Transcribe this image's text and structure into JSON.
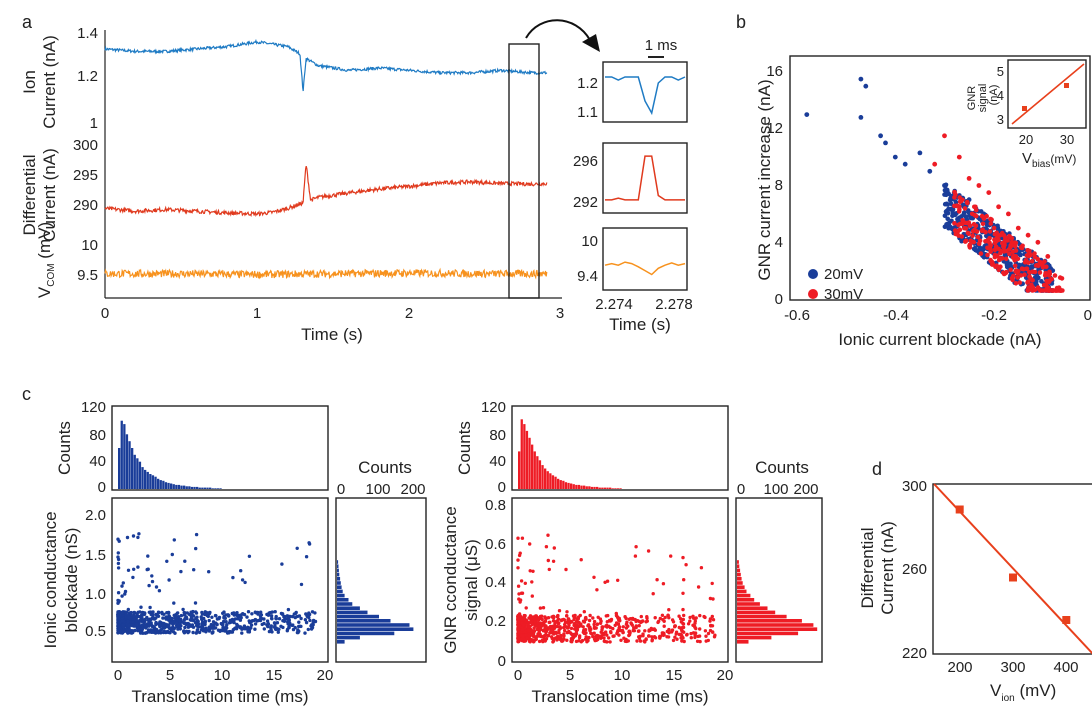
{
  "panels": {
    "a": "a",
    "b": "b",
    "c": "c",
    "d": "d"
  },
  "colors": {
    "blue": "#1f7bc4",
    "red": "#e03a1e",
    "orange": "#f7921e",
    "navy": "#1a3d99",
    "bright_red": "#ee1c25",
    "fit": "#e8401c"
  },
  "chart_data": [
    {
      "id": "a-ion",
      "type": "line",
      "ylabel_1": "Ion",
      "ylabel_2": "Current (nA)",
      "xlim": [
        0,
        3
      ],
      "ylim": [
        1.0,
        1.4
      ],
      "yticks": [
        "1.4",
        "1.2",
        "1"
      ],
      "series": [
        {
          "x": [
            0,
            0.2,
            0.4,
            0.6,
            0.8,
            1.0,
            1.1,
            1.2,
            1.28,
            1.3,
            1.32,
            1.4,
            1.6,
            1.8,
            2.0,
            2.2,
            2.4,
            2.6,
            2.8,
            2.9
          ],
          "values": [
            1.32,
            1.31,
            1.31,
            1.32,
            1.33,
            1.35,
            1.34,
            1.33,
            1.3,
            1.14,
            1.28,
            1.25,
            1.23,
            1.24,
            1.23,
            1.22,
            1.22,
            1.23,
            1.22,
            1.22
          ]
        }
      ]
    },
    {
      "id": "a-diff",
      "type": "line",
      "ylabel_1": "Differential",
      "ylabel_2": "Current (nA)",
      "xlim": [
        0,
        3
      ],
      "ylim": [
        285,
        300
      ],
      "yticks": [
        "300",
        "295",
        "290"
      ],
      "series": [
        {
          "x": [
            0,
            0.2,
            0.4,
            0.6,
            0.8,
            1.0,
            1.1,
            1.2,
            1.3,
            1.32,
            1.35,
            1.4,
            1.6,
            1.8,
            2.0,
            2.2,
            2.4,
            2.6,
            2.8,
            2.9
          ],
          "values": [
            288,
            287.5,
            287.8,
            287.5,
            287.2,
            287,
            287.3,
            288,
            289,
            296,
            289.5,
            290,
            290.8,
            291.5,
            292,
            292.6,
            292.8,
            292.5,
            292.4,
            292.5
          ]
        }
      ]
    },
    {
      "id": "a-vcom",
      "type": "line",
      "ylabel_1": "V",
      "ylabel_sub": "COM",
      "ylabel_2": "(mV)",
      "xlim": [
        0,
        3
      ],
      "ylim": [
        9.3,
        10.1
      ],
      "yticks": [
        "10",
        "9.5"
      ],
      "xticks": [
        "0",
        "1",
        "2",
        "3"
      ],
      "xlabel": "Time (s)",
      "series": [
        {
          "x": [
            0,
            0.5,
            1.0,
            1.5,
            2.0,
            2.5,
            2.9
          ],
          "values": [
            9.65,
            9.65,
            9.64,
            9.65,
            9.66,
            9.65,
            9.65
          ]
        }
      ]
    },
    {
      "id": "a-inset",
      "type": "line",
      "scale_bar": "1 ms",
      "xlabel": "Time (s)",
      "xticks": [
        "2.274",
        "2.278"
      ],
      "panels": [
        {
          "yticks": [
            "1.2",
            "1.1"
          ],
          "values": [
            1.2,
            1.2,
            1.19,
            1.2,
            1.2,
            1.2,
            1.12,
            1.08,
            1.18,
            1.2,
            1.2,
            1.19,
            1.2
          ]
        },
        {
          "yticks": [
            "296",
            "292"
          ],
          "values": [
            292,
            292,
            292.2,
            292,
            292,
            292,
            297,
            297,
            292.5,
            292,
            292,
            292,
            292
          ]
        },
        {
          "yticks": [
            "10",
            "9.4"
          ],
          "values": [
            9.62,
            9.64,
            9.62,
            9.66,
            9.64,
            9.6,
            9.55,
            9.5,
            9.58,
            9.62,
            9.65,
            9.62,
            9.64
          ]
        }
      ]
    },
    {
      "id": "b",
      "type": "scatter",
      "xlabel": "Ionic current blockade (nA)",
      "ylabel": "GNR current increase (nA)",
      "xlim": [
        -0.6,
        0
      ],
      "ylim": [
        0,
        17
      ],
      "xticks": [
        "-0.6",
        "-0.4",
        "-0.2",
        "0"
      ],
      "yticks": [
        "0",
        "4",
        "8",
        "12",
        "16"
      ],
      "legend": [
        "20mV",
        "30mV"
      ],
      "legend_position": "left",
      "series": [
        {
          "name": "20mV",
          "points": [
            [
              -0.58,
              13
            ],
            [
              -0.47,
              15.5
            ],
            [
              -0.46,
              15
            ],
            [
              -0.47,
              12.8
            ],
            [
              -0.43,
              11.5
            ],
            [
              -0.42,
              11
            ],
            [
              -0.4,
              10
            ],
            [
              -0.38,
              9.5
            ],
            [
              -0.35,
              10.3
            ],
            [
              -0.33,
              9
            ],
            [
              -0.3,
              8
            ],
            [
              -0.28,
              7.5
            ],
            [
              -0.25,
              7
            ],
            [
              -0.22,
              6
            ],
            [
              -0.2,
              5
            ],
            [
              -0.18,
              4.5
            ],
            [
              -0.16,
              4
            ],
            [
              -0.14,
              3.5
            ],
            [
              -0.12,
              3
            ],
            [
              -0.1,
              2.5
            ],
            [
              -0.08,
              2
            ]
          ]
        },
        {
          "name": "30mV",
          "points": [
            [
              -0.32,
              9.5
            ],
            [
              -0.3,
              11.5
            ],
            [
              -0.27,
              10
            ],
            [
              -0.25,
              8.5
            ],
            [
              -0.23,
              8
            ],
            [
              -0.21,
              7.5
            ],
            [
              -0.19,
              6.5
            ],
            [
              -0.17,
              6
            ],
            [
              -0.15,
              5
            ],
            [
              -0.13,
              4.5
            ],
            [
              -0.11,
              4
            ],
            [
              -0.09,
              3
            ]
          ]
        }
      ],
      "inset": {
        "ylabel_1": "GNR",
        "ylabel_2": "signal",
        "ylabel_unit": "(nA)",
        "xlabel_main": "V",
        "xlabel_sub": "bias",
        "xlabel_unit": "(mV)",
        "xticks": [
          "20",
          "30"
        ],
        "yticks": [
          "5",
          "4",
          "3"
        ],
        "points": [
          [
            20,
            3.3
          ],
          [
            30,
            4.4
          ]
        ]
      }
    },
    {
      "id": "c-left",
      "type": "scatter",
      "xlabel": "Translocation time (ms)",
      "ylabel_1": "Ionic conductance",
      "ylabel_2": "blockade (nS)",
      "xlim": [
        0,
        20
      ],
      "ylim": [
        0,
        2.1
      ],
      "xticks": [
        "0",
        "5",
        "10",
        "15",
        "20"
      ],
      "yticks": [
        "0.5",
        "1.0",
        "1.5",
        "2.0"
      ],
      "hist_top": {
        "ylabel": "Counts",
        "yticks": [
          "120",
          "80",
          "40",
          "0"
        ],
        "values": [
          60,
          100,
          95,
          80,
          70,
          60,
          50,
          45,
          40,
          32,
          28,
          25,
          22,
          20,
          18,
          15,
          13,
          12,
          10,
          9,
          8,
          7,
          6,
          6,
          5,
          5,
          4,
          4,
          3,
          3,
          3,
          2,
          2,
          2,
          2,
          2,
          1,
          1,
          1,
          1
        ]
      },
      "hist_right": {
        "xlabel": "Counts",
        "xticks": [
          "0",
          "100",
          "200"
        ],
        "values": [
          20,
          60,
          150,
          200,
          190,
          140,
          110,
          80,
          60,
          40,
          30,
          20,
          15,
          12,
          10,
          8,
          6,
          5,
          4,
          3
        ]
      }
    },
    {
      "id": "c-right",
      "type": "scatter",
      "xlabel": "Translocation time (ms)",
      "ylabel_1": "GNR cconductance",
      "ylabel_2": "signal",
      "ylabel_unit": "(μS)",
      "xlim": [
        0,
        20
      ],
      "ylim": [
        0,
        0.85
      ],
      "xticks": [
        "0",
        "5",
        "10",
        "15",
        "20"
      ],
      "yticks": [
        "0",
        "0.2",
        "0.4",
        "0.6",
        "0.8"
      ],
      "hist_top": {
        "ylabel": "Counts",
        "yticks": [
          "120",
          "80",
          "40",
          "0"
        ],
        "values": [
          55,
          102,
          95,
          85,
          75,
          65,
          55,
          48,
          42,
          35,
          30,
          26,
          23,
          20,
          18,
          15,
          13,
          12,
          10,
          9,
          8,
          7,
          6,
          6,
          5,
          5,
          4,
          4,
          3,
          3,
          3,
          2,
          2,
          2,
          2,
          2,
          1,
          1,
          1,
          1
        ]
      },
      "hist_right": {
        "xlabel": "Counts",
        "xticks": [
          "0",
          "100",
          "200"
        ],
        "values": [
          30,
          90,
          160,
          210,
          200,
          170,
          130,
          100,
          80,
          60,
          45,
          35,
          25,
          20,
          15,
          12,
          10,
          8,
          6,
          5
        ]
      }
    },
    {
      "id": "d",
      "type": "line",
      "ylabel_1": "Differential",
      "ylabel_2": "Current (nA)",
      "xlabel_main": "V",
      "xlabel_sub": "ion",
      "xlabel_unit": "(mV)",
      "xlim": [
        150,
        450
      ],
      "ylim": [
        220,
        300
      ],
      "xticks": [
        "200",
        "300",
        "400"
      ],
      "yticks": [
        "300",
        "260",
        "220"
      ],
      "points": [
        [
          200,
          288
        ],
        [
          300,
          256
        ],
        [
          400,
          236
        ]
      ]
    }
  ]
}
